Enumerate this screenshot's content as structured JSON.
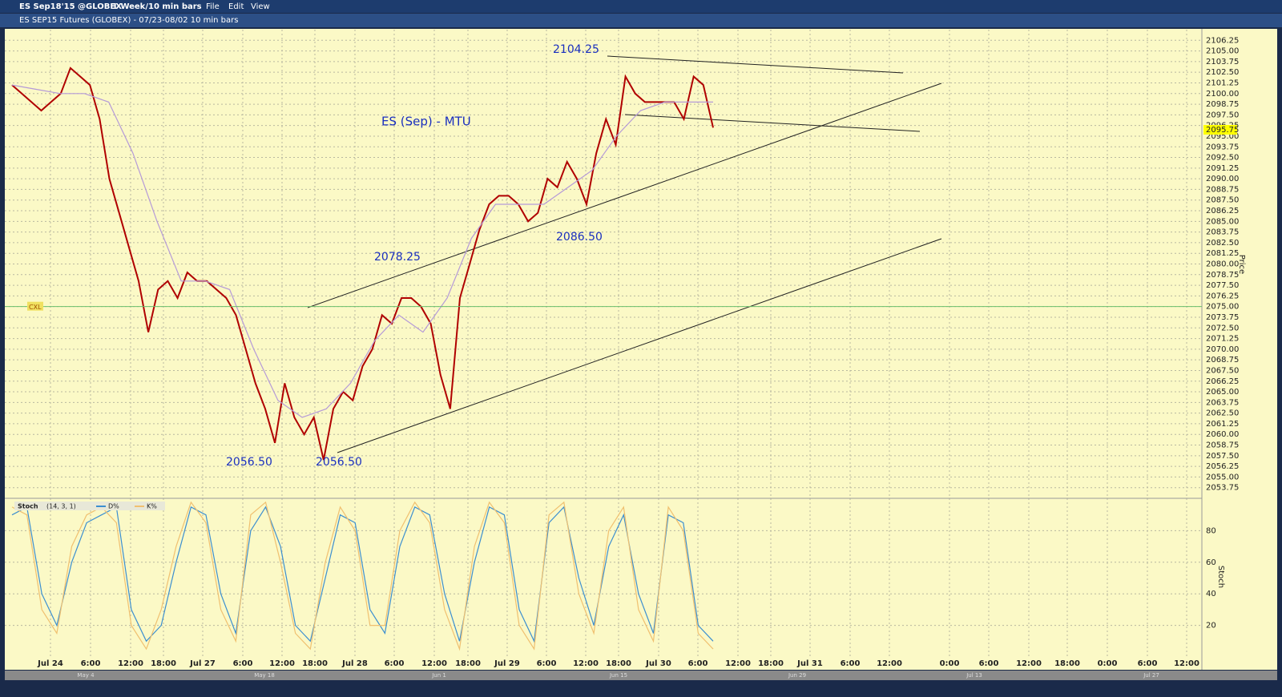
{
  "window": {
    "symbol": "ES Sep18'15 @GLOBEX",
    "interval": "1 Week/10 min bars",
    "menus": [
      "File",
      "Edit",
      "View"
    ],
    "chart_header": "ES SEP15 Futures (GLOBEX) - 07/23-08/02 10 min bars",
    "overview_labels": [
      "May 4",
      "May 18",
      "Jun 1",
      "Jun 15",
      "Jun 29",
      "Jul 13",
      "Jul 27"
    ]
  },
  "chart_data": [
    {
      "type": "line",
      "y_label": "Price",
      "xtick_labels": [
        "Jul 24",
        "6:00",
        "12:00",
        "18:00",
        "Jul 27",
        "6:00",
        "12:00",
        "18:00",
        "Jul 28",
        "6:00",
        "12:00",
        "18:00",
        "Jul 29",
        "6:00",
        "12:00",
        "18:00",
        "Jul 30",
        "6:00",
        "12:00",
        "18:00",
        "Jul 31",
        "6:00",
        "12:00",
        "0:00",
        "6:00",
        "12:00",
        "18:00",
        "0:00",
        "6:00",
        "12:00"
      ],
      "ylim": [
        2052.5,
        2107.5
      ],
      "yticks": [
        2106.25,
        {
          "value": 2105,
          "label": "2105.00"
        },
        2103.75,
        {
          "value": 2102.5,
          "label": "2102.50"
        },
        2101.25,
        {
          "value": 2100,
          "label": "2100.00"
        },
        2098.75,
        {
          "value": 2097.5,
          "label": "2097.50"
        },
        2096.25,
        {
          "value": 2095,
          "label": "2095.00"
        },
        2093.75,
        {
          "value": 2092.5,
          "label": "2092.50"
        },
        2091.25,
        {
          "value": 2090,
          "label": "2090.00"
        },
        2088.75,
        {
          "value": 2087.5,
          "label": "2087.50"
        },
        2086.25,
        {
          "value": 2085,
          "label": "2085.00"
        },
        2083.75,
        {
          "value": 2082.5,
          "label": "2082.50"
        },
        2081.25,
        {
          "value": 2080,
          "label": "2080.00"
        },
        2078.75,
        {
          "value": 2077.5,
          "label": "2077.50"
        },
        2076.25,
        {
          "value": 2075,
          "label": "2075.00"
        },
        2073.75,
        {
          "value": 2072.5,
          "label": "2072.50"
        },
        2071.25,
        {
          "value": 2070,
          "label": "2070.00"
        },
        2068.75,
        {
          "value": 2067.5,
          "label": "2067.50"
        },
        2066.25,
        {
          "value": 2065,
          "label": "2065.00"
        },
        2063.75,
        {
          "value": 2062.5,
          "label": "2062.50"
        },
        2061.25,
        {
          "value": 2060,
          "label": "2060.00"
        },
        2058.75,
        {
          "value": 2057.5,
          "label": "2057.50"
        },
        2056.25,
        {
          "value": 2055,
          "label": "2055.00"
        },
        2053.75
      ],
      "grid": true,
      "series": [
        {
          "color": "#b00000",
          "values": [
            2101,
            2100,
            2099,
            2098,
            2099,
            2100,
            2103,
            2102,
            2101,
            2097,
            2090,
            2086,
            2082,
            2078,
            2072,
            2077,
            2078,
            2076,
            2079,
            2078,
            2078,
            2077,
            2076,
            2074,
            2070,
            2066,
            2063,
            2059,
            2066,
            2062,
            2060,
            2062,
            2057,
            2063,
            2065,
            2064,
            2068,
            2070,
            2074,
            2073,
            2076,
            2076,
            2075,
            2073,
            2067,
            2063,
            2076,
            2080,
            2084,
            2087,
            2088,
            2088,
            2087,
            2085,
            2086,
            2090,
            2089,
            2092,
            2090,
            2087,
            2093,
            2097,
            2094,
            2102,
            2100,
            2099,
            2099,
            2099,
            2099,
            2097,
            2102,
            2101,
            2096
          ]
        },
        {
          "color": "#b59ad8",
          "values": [
            2101,
            2100.5,
            2100,
            2100,
            2099,
            2093,
            2085,
            2078,
            2078,
            2077,
            2070,
            2064,
            2062,
            2063,
            2066,
            2071,
            2074,
            2072,
            2076,
            2083,
            2087,
            2087,
            2087,
            2089,
            2091,
            2095,
            2098,
            2099,
            2099,
            2099
          ]
        }
      ],
      "last_price": 2095.75,
      "cxl_level": 2075,
      "cxl_label": "CXL",
      "title": "ES (Sep) - MTU",
      "annotations": [
        "2104.25",
        "2078.25",
        "2086.50",
        "2056.50",
        "2056.50"
      ]
    },
    {
      "type": "line",
      "title": "Stoch",
      "params": "(14, 3, 1)",
      "y_label": "Stoch",
      "ylim": [
        0,
        100
      ],
      "yticks": [
        20,
        40,
        60,
        80
      ],
      "series": [
        {
          "name": "D%",
          "color": "#3c8fd0",
          "values": [
            90,
            95,
            40,
            20,
            60,
            85,
            90,
            95,
            30,
            10,
            20,
            60,
            95,
            90,
            40,
            15,
            80,
            95,
            70,
            20,
            10,
            50,
            90,
            85,
            30,
            15,
            70,
            95,
            90,
            40,
            10,
            60,
            95,
            90,
            30,
            10,
            85,
            95,
            50,
            20,
            70,
            90,
            40,
            15,
            90,
            85,
            20,
            10
          ]
        },
        {
          "name": "K%",
          "color": "#f0c070",
          "values": [
            95,
            90,
            30,
            15,
            70,
            90,
            95,
            85,
            20,
            5,
            30,
            70,
            98,
            85,
            30,
            10,
            90,
            98,
            60,
            15,
            5,
            60,
            95,
            80,
            20,
            20,
            80,
            98,
            85,
            30,
            5,
            70,
            98,
            85,
            20,
            5,
            90,
            98,
            40,
            15,
            80,
            95,
            30,
            10,
            95,
            80,
            15,
            5
          ]
        }
      ]
    }
  ]
}
